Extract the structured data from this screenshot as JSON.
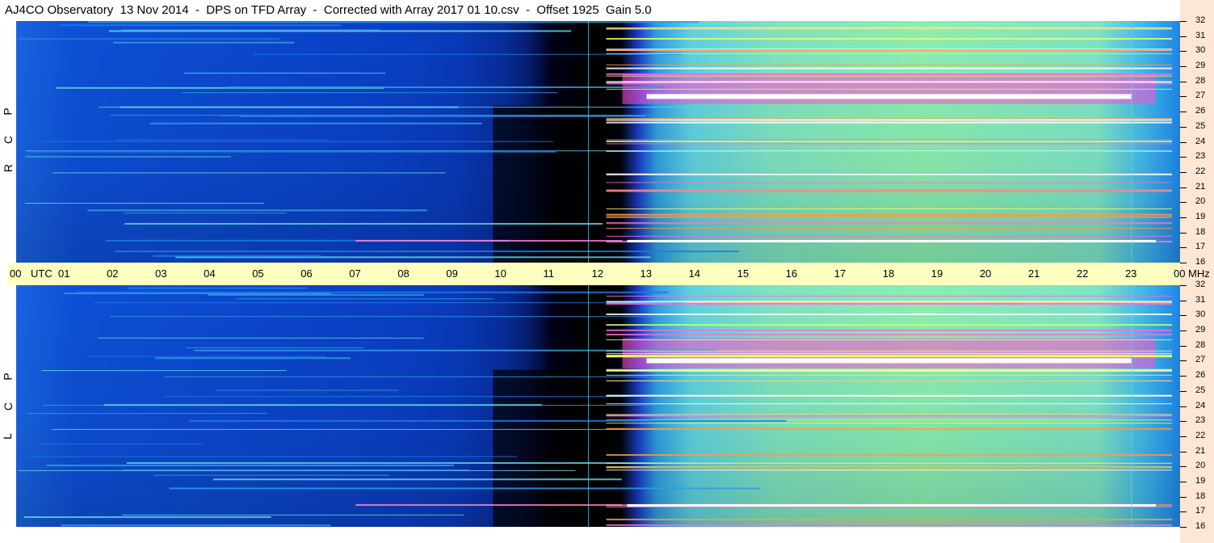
{
  "title": "AJ4CO Observatory  13 Nov 2014  -  DPS on TFD Array  -  Corrected with Array 2017 01 10.csv  -  Offset 1925  Gain 5.0",
  "panels": [
    {
      "id": "rcp",
      "letters": [
        "R",
        "C",
        "P"
      ]
    },
    {
      "id": "lcp",
      "letters": [
        "L",
        "C",
        "P"
      ]
    }
  ],
  "colors": {
    "axis_band": "#ffffc0",
    "right_strip": "#fde7d4",
    "night_deep": "#000000",
    "night_blue": "#0a2fa8",
    "mid_blue": "#0d55d8",
    "day_cyan": "#3fc6e8",
    "day_green": "#9bf09a",
    "emission_pink": "#ff4fd0",
    "emission_white": "#ffffff"
  },
  "chart_data": {
    "type": "heatmap",
    "title": "AJ4CO Observatory  13 Nov 2014  -  DPS on TFD Array  -  Corrected with Array 2017 01 10.csv  -  Offset 1925  Gain 5.0",
    "x_axis": {
      "unit": "UTC",
      "ticks": [
        "00",
        "01",
        "02",
        "03",
        "04",
        "05",
        "06",
        "07",
        "08",
        "09",
        "10",
        "11",
        "12",
        "13",
        "14",
        "15",
        "16",
        "17",
        "18",
        "19",
        "20",
        "21",
        "22",
        "23",
        "00"
      ],
      "range": [
        0,
        24
      ]
    },
    "y_axis": {
      "unit": "MHz",
      "ticks": [
        "32",
        "31",
        "30",
        "29",
        "28",
        "27",
        "26",
        "25",
        "24",
        "23",
        "22",
        "21",
        "20",
        "19",
        "18",
        "17",
        "16"
      ],
      "range": [
        16,
        32
      ]
    },
    "panels": [
      "RCP",
      "LCP"
    ],
    "features": {
      "night_darkest_utc": [
        9.5,
        12.0
      ],
      "daytime_start_utc": 12.5,
      "daytime_end_utc": 23.5,
      "bright_band_mhz": [
        26.5,
        28.5
      ],
      "bright_band_center_mhz": 27
    }
  }
}
